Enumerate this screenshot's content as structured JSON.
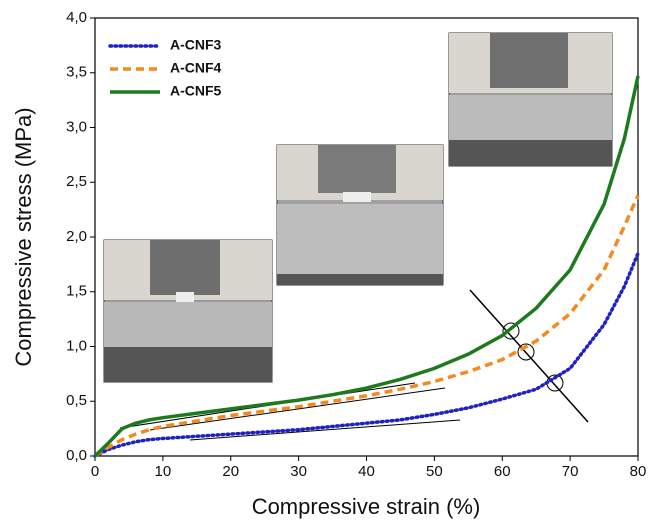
{
  "chart_data": {
    "type": "line",
    "x_label": "Compressive strain (%)",
    "y_label": "Compressive stress (MPa)",
    "x": [
      0,
      2,
      4,
      6,
      8,
      10,
      15,
      20,
      25,
      30,
      35,
      40,
      45,
      50,
      55,
      60,
      65,
      70,
      75,
      78,
      80
    ],
    "series": [
      {
        "name": "A-CNF3",
        "color": "#1f22c0",
        "values": [
          0,
          0.06,
          0.1,
          0.13,
          0.15,
          0.16,
          0.18,
          0.2,
          0.22,
          0.24,
          0.27,
          0.3,
          0.33,
          0.38,
          0.44,
          0.52,
          0.61,
          0.8,
          1.2,
          1.55,
          1.85
        ]
      },
      {
        "name": "A-CNF4",
        "color": "#f5891f",
        "values": [
          0,
          0.08,
          0.15,
          0.2,
          0.24,
          0.27,
          0.32,
          0.37,
          0.41,
          0.45,
          0.5,
          0.55,
          0.61,
          0.68,
          0.77,
          0.88,
          1.05,
          1.3,
          1.7,
          2.1,
          2.38
        ]
      },
      {
        "name": "A-CNF5",
        "color": "#1d7a1d",
        "values": [
          0,
          0.12,
          0.25,
          0.3,
          0.33,
          0.35,
          0.39,
          0.43,
          0.47,
          0.51,
          0.56,
          0.62,
          0.7,
          0.8,
          0.93,
          1.1,
          1.35,
          1.7,
          2.3,
          2.9,
          3.47
        ]
      }
    ],
    "xlim": [
      0,
      80
    ],
    "xticks": [
      0,
      10,
      20,
      30,
      40,
      50,
      60,
      70,
      80
    ],
    "ylim": [
      0,
      4
    ],
    "yticks": [
      {
        "value": 0,
        "label": "0,0"
      },
      {
        "value": 0.5,
        "label": "0,5"
      },
      {
        "value": 1,
        "label": "1,0"
      },
      {
        "value": 1.5,
        "label": "1,5"
      },
      {
        "value": 2,
        "label": "2,0"
      },
      {
        "value": 2.5,
        "label": "2,5"
      },
      {
        "value": 3,
        "label": "3,0"
      },
      {
        "value": 3.5,
        "label": "3,5"
      },
      {
        "value": 4,
        "label": "4,0"
      }
    ],
    "legend": "upper-left"
  }
}
